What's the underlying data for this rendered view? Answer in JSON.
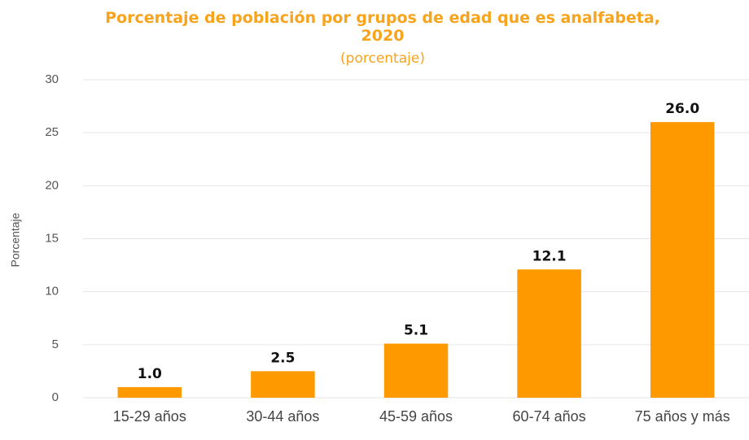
{
  "chart_data": {
    "type": "bar",
    "title": "Porcentaje de población por grupos de edad que es analfabeta, 2020",
    "subtitle": "(porcentaje)",
    "y_label": "Porcentaje",
    "categories": [
      "15-29 años",
      "30-44 años",
      "45-59 años",
      "60-74 años",
      "75 años y más"
    ],
    "values": [
      1.0,
      2.5,
      5.1,
      12.1,
      26.0
    ],
    "value_labels": [
      "1.0",
      "2.5",
      "5.1",
      "12.1",
      "26.0"
    ],
    "color": "#ff9900",
    "ylim": [
      0,
      30
    ],
    "yticks": [
      0,
      5,
      10,
      15,
      20,
      25,
      30
    ],
    "grid": true
  }
}
